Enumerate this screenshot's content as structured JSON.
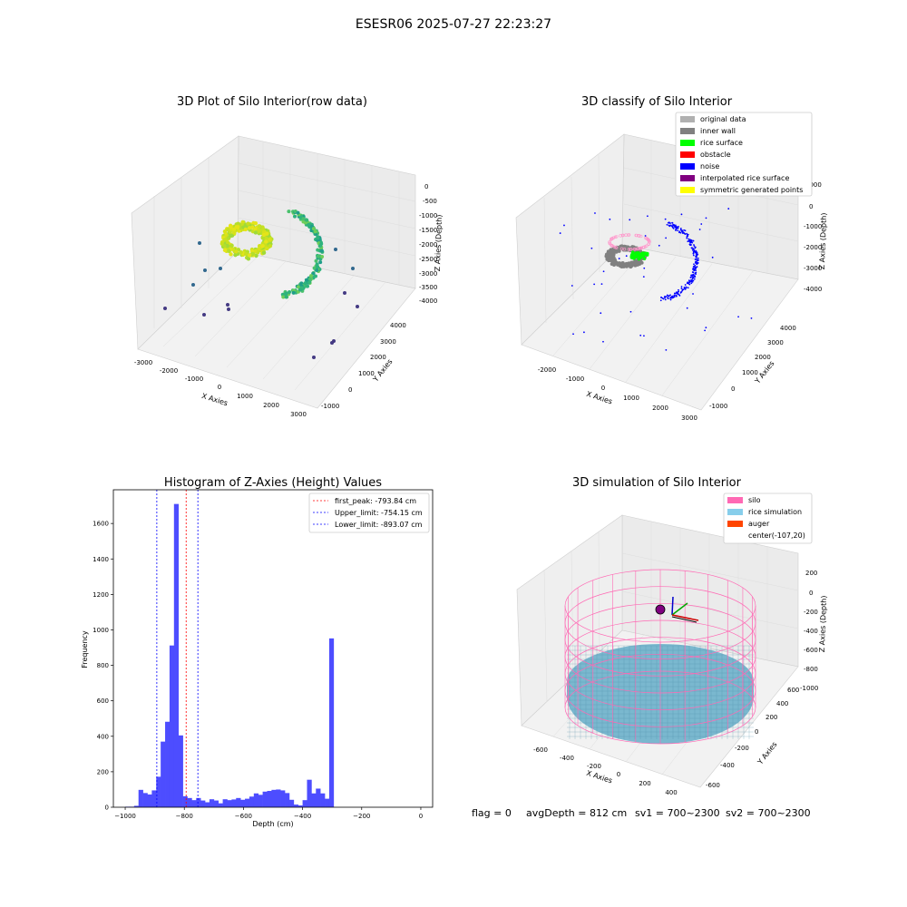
{
  "figure": {
    "suptitle": "ESESR06 2025-07-27 22:23:27",
    "status": {
      "flag": "flag = 0",
      "avg_depth": "avgDepth = 812 cm",
      "sv1": "sv1 = 700~2300",
      "sv2": "sv2 = 700~2300"
    }
  },
  "chart_data": [
    {
      "type": "scatter",
      "projection": "3d",
      "title": "3D Plot of Silo Interior(row data)",
      "xlabel": "X Axies",
      "ylabel": "Y Axies",
      "zlabel": "Z Axies (Depth)",
      "x_ticks": [
        "-3000",
        "-2000",
        "-1000",
        "0",
        "1000",
        "2000",
        "3000"
      ],
      "y_ticks": [
        "-1000",
        "0",
        "1000",
        "2000",
        "3000",
        "4000"
      ],
      "z_ticks": [
        "0",
        "-500",
        "-1000",
        "-1500",
        "-2000",
        "-2500",
        "-3000",
        "-3500",
        "-4000"
      ],
      "colormap": "viridis"
    },
    {
      "type": "scatter",
      "projection": "3d",
      "title": "3D classify of Silo Interior",
      "xlabel": "X Axies",
      "ylabel": "Y Axies",
      "zlabel": "Z Axies (Depth)",
      "x_ticks": [
        "-2000",
        "-1000",
        "0",
        "1000",
        "2000",
        "3000"
      ],
      "y_ticks": [
        "-1000",
        "0",
        "1000",
        "2000",
        "3000",
        "4000"
      ],
      "z_ticks": [
        "1000",
        "0",
        "-1000",
        "-2000",
        "-3000",
        "-4000"
      ],
      "legend_position": "top-right",
      "legend": [
        {
          "label": "original data",
          "color": "#b0b0b0"
        },
        {
          "label": "inner wall",
          "color": "#808080"
        },
        {
          "label": "rice surface",
          "color": "#00ff00"
        },
        {
          "label": "obstacle",
          "color": "#ff0000"
        },
        {
          "label": "noise",
          "color": "#0000ff"
        },
        {
          "label": "interpolated rice surface",
          "color": "#800080"
        },
        {
          "label": "symmetric generated points",
          "color": "#ffff00"
        }
      ]
    },
    {
      "type": "bar",
      "title": "Histogram of Z-Axies (Height) Values",
      "xlabel": "Depth (cm)",
      "ylabel": "Frequency",
      "xlim": [
        -1040,
        40
      ],
      "ylim": [
        0,
        1790
      ],
      "x_ticks": [
        -1000,
        -800,
        -600,
        -400,
        -200,
        0
      ],
      "y_ticks": [
        0,
        200,
        400,
        600,
        800,
        1000,
        1200,
        1400,
        1600
      ],
      "bin_width": 16,
      "bar_color": "#4d4dff",
      "bins": [
        [
          -1000,
          3
        ],
        [
          -985,
          3
        ],
        [
          -970,
          8
        ],
        [
          -955,
          98
        ],
        [
          -940,
          80
        ],
        [
          -925,
          72
        ],
        [
          -910,
          95
        ],
        [
          -895,
          172
        ],
        [
          -880,
          370
        ],
        [
          -865,
          482
        ],
        [
          -850,
          912
        ],
        [
          -835,
          1710
        ],
        [
          -820,
          405
        ],
        [
          -805,
          62
        ],
        [
          -790,
          52
        ],
        [
          -775,
          40
        ],
        [
          -760,
          52
        ],
        [
          -745,
          38
        ],
        [
          -730,
          28
        ],
        [
          -715,
          45
        ],
        [
          -700,
          38
        ],
        [
          -685,
          22
        ],
        [
          -670,
          45
        ],
        [
          -655,
          40
        ],
        [
          -640,
          44
        ],
        [
          -625,
          52
        ],
        [
          -610,
          42
        ],
        [
          -595,
          48
        ],
        [
          -580,
          60
        ],
        [
          -565,
          78
        ],
        [
          -550,
          70
        ],
        [
          -535,
          88
        ],
        [
          -520,
          92
        ],
        [
          -505,
          98
        ],
        [
          -490,
          100
        ],
        [
          -475,
          95
        ],
        [
          -460,
          80
        ],
        [
          -445,
          42
        ],
        [
          -430,
          15
        ],
        [
          -415,
          10
        ],
        [
          -400,
          40
        ],
        [
          -385,
          155
        ],
        [
          -370,
          78
        ],
        [
          -355,
          105
        ],
        [
          -340,
          78
        ],
        [
          -325,
          48
        ],
        [
          -310,
          952
        ]
      ],
      "reference_lines": [
        {
          "label": "first_peak: -793.84 cm",
          "x": -793.84,
          "color": "#ff0000"
        },
        {
          "label": "Upper_limit: -754.15 cm",
          "x": -754.15,
          "color": "#0000ff"
        },
        {
          "label": "Lower_limit: -893.07 cm",
          "x": -893.07,
          "color": "#0000ff"
        }
      ],
      "legend_position": "top-right"
    },
    {
      "type": "surface",
      "projection": "3d",
      "title": "3D simulation of Silo Interior",
      "xlabel": "X Axies",
      "ylabel": "Y Axies",
      "zlabel": "Z Axies (Depth)",
      "x_ticks": [
        "-600",
        "-400",
        "-200",
        "0",
        "200",
        "400"
      ],
      "y_ticks": [
        "-600",
        "-400",
        "-200",
        "0",
        "200",
        "400",
        "600"
      ],
      "z_ticks": [
        "200",
        "0",
        "-200",
        "-400",
        "-600",
        "-800",
        "-1000"
      ],
      "legend_position": "top-right",
      "legend": [
        {
          "label": "silo",
          "color": "#ff69b4"
        },
        {
          "label": "rice simulation",
          "color": "#87ceeb"
        },
        {
          "label": "auger",
          "color": "#ff4500"
        },
        {
          "label": "center(-107,20)",
          "color": ""
        }
      ]
    }
  ]
}
